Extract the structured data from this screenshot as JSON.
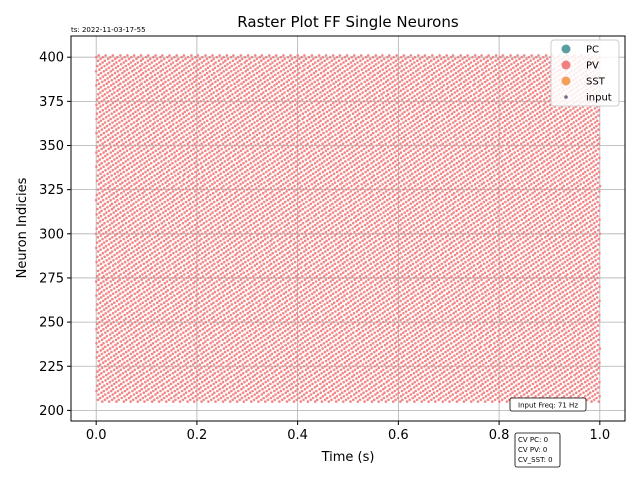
{
  "timestamp": "ts: 2022-11-03-17-55",
  "input_freq": "Input Freq: 71 Hz",
  "cv_lines": [
    "CV PC: 0",
    "CV PV: 0",
    "CV_SST: 0"
  ],
  "colors": {
    "PC": "#5a9e9f",
    "PV": "#f08080",
    "SST": "#f5a05a",
    "input": "#6b6b8a",
    "grid": "#b0b0b0"
  },
  "chart_data": {
    "type": "scatter",
    "title": "Raster Plot FF Single Neurons",
    "xlabel": "Time (s)",
    "ylabel": "Neuron Indicies",
    "xlim": [
      -0.05,
      1.05
    ],
    "ylim": [
      194,
      412
    ],
    "xticks": [
      "0.0",
      "0.2",
      "0.4",
      "0.6",
      "0.8",
      "1.0"
    ],
    "yticks": [
      "200",
      "225",
      "250",
      "275",
      "300",
      "325",
      "350",
      "375",
      "400"
    ],
    "grid": true,
    "legend_position": "top-right",
    "legend": [
      "PC",
      "PV",
      "SST",
      "input"
    ],
    "series": [
      {
        "name": "PV",
        "neuron_range": [
          205,
          401
        ],
        "time_range": [
          0.0,
          1.0
        ],
        "rate_hz": 71,
        "note_values": "dense regular spikes for each PV neuron"
      }
    ]
  }
}
